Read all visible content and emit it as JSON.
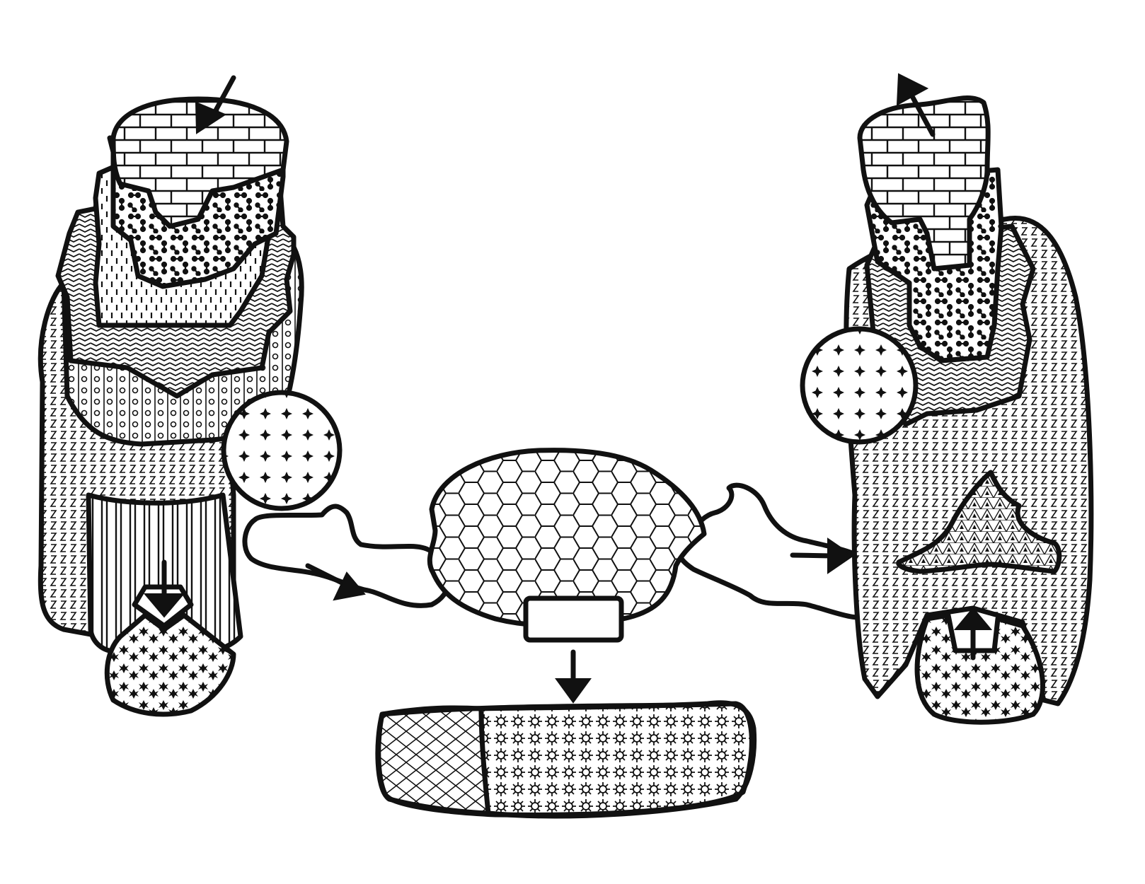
{
  "diagram": {
    "title": "",
    "labels": [],
    "colors": {
      "ink": "#111111",
      "paper": "#ffffff"
    },
    "patterns": [
      "brick",
      "bone",
      "dash",
      "herringbone",
      "circles",
      "zigzag",
      "plus-star",
      "star",
      "hexagon",
      "diamond-lattice",
      "sunburst",
      "stripes",
      "triangle-mesh"
    ],
    "annotation_box_text": ""
  }
}
